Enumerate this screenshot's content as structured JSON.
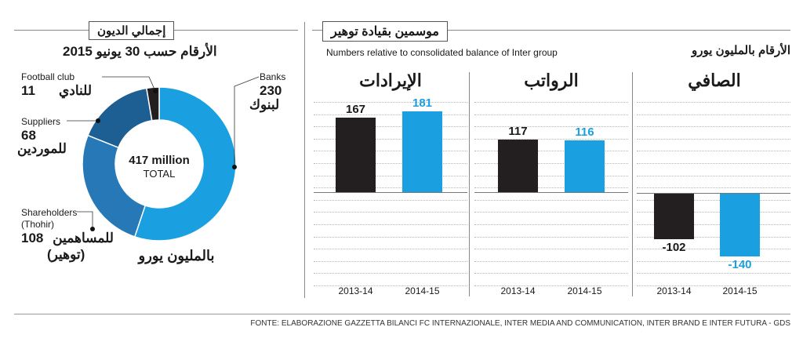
{
  "left": {
    "title": "إجمالي الديون",
    "subtitle": "الأرقام حسب 30 يونيو 2015",
    "center_value": "417 million",
    "center_label": "TOTAL",
    "unit_note": "بالمليون يورو",
    "labels": {
      "football_en": "Football club",
      "football_num": "11",
      "football_ar": "للنادي",
      "suppliers_en": "Suppliers",
      "suppliers_num": "68",
      "suppliers_ar": "للموردين",
      "shareholders_en": "Shareholders",
      "shareholders_en2": "(Thohir)",
      "shareholders_num": "108",
      "shareholders_ar": "للمساهمين",
      "shareholders_ar2": "(توهير)",
      "banks_en": "Banks",
      "banks_num": "230",
      "banks_ar": "لبنوك"
    }
  },
  "right": {
    "title": "موسمين بقيادة توهير",
    "note_en": "Numbers relative to consolidated balance of Inter group",
    "note_ar": "الأرقام بالمليون يورو"
  },
  "source": "FONTE: ELABORAZIONE GAZZETTA BILANCI FC INTERNAZIONALE, INTER MEDIA AND COMMUNICATION, INTER BRAND E INTER FUTURA - GDS",
  "colors": {
    "dark": "#231f20",
    "blue": "#1a9fe0",
    "donut_dark": "#1d5f92",
    "donut_mid": "#2678b6",
    "donut_blue": "#1a9fe0",
    "donut_black": "#231f20"
  },
  "chart_data": [
    {
      "type": "pie",
      "title": "إجمالي الديون",
      "categories": [
        "Banks",
        "Shareholders (Thohir)",
        "Suppliers",
        "Football club"
      ],
      "values": [
        230,
        108,
        68,
        11
      ],
      "total": 417
    },
    {
      "type": "bar",
      "title": "الإيرادات",
      "categories": [
        "2013-14",
        "2014-15"
      ],
      "values": [
        167,
        181
      ],
      "labels": [
        "167",
        "181"
      ]
    },
    {
      "type": "bar",
      "title": "الرواتب",
      "categories": [
        "2013-14",
        "2014-15"
      ],
      "values": [
        117,
        116
      ],
      "labels": [
        "117",
        "116"
      ]
    },
    {
      "type": "bar",
      "title": "الصافي",
      "categories": [
        "2013-14",
        "2014-15"
      ],
      "values": [
        -102,
        -140
      ],
      "labels": [
        "-102",
        "-140"
      ]
    }
  ]
}
